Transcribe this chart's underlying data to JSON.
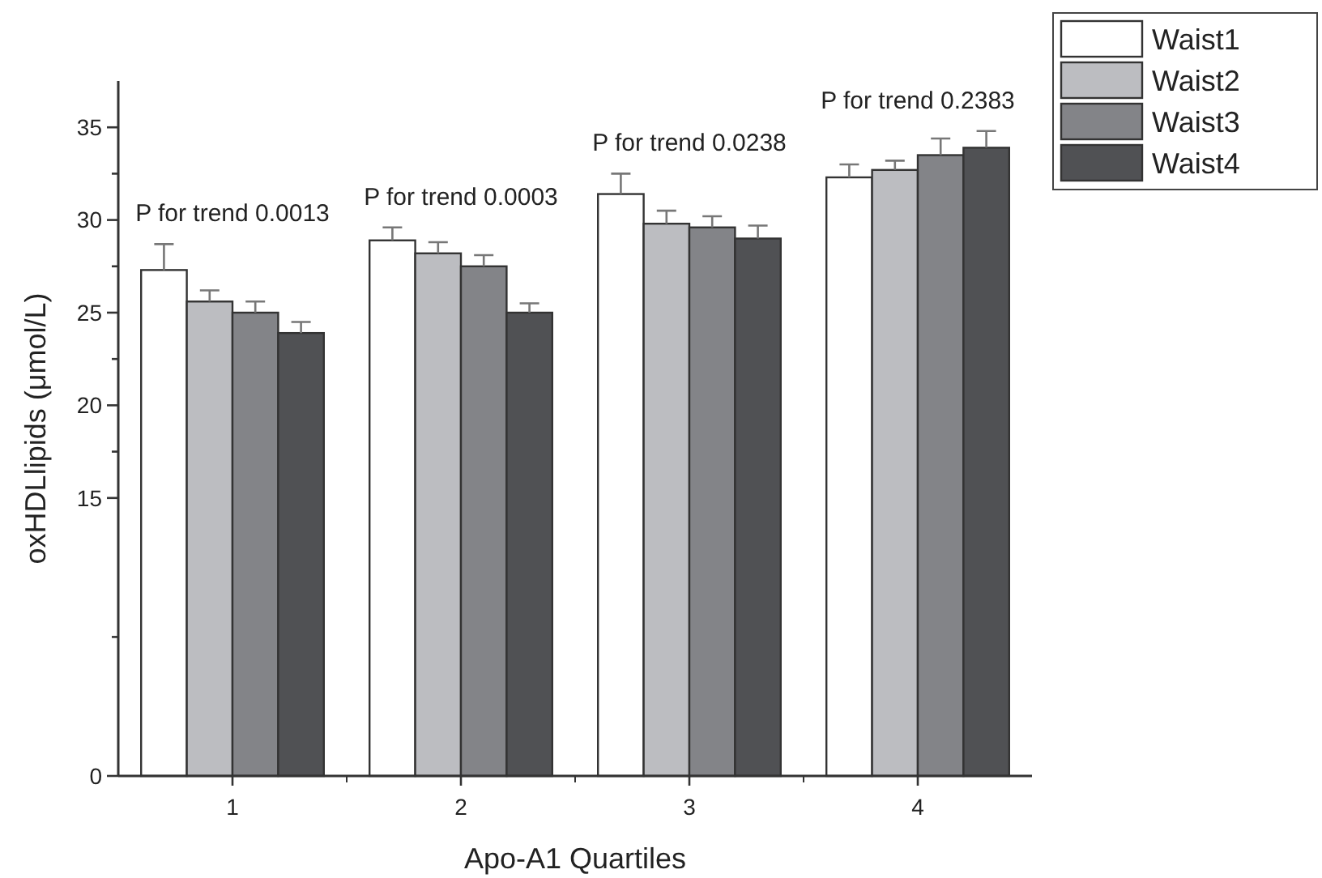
{
  "chart_data": {
    "type": "bar",
    "xlabel": "Apo-A1 Quartiles",
    "ylabel": "oxHDLlipids (μmol/L)",
    "categories": [
      "1",
      "2",
      "3",
      "4"
    ],
    "series": [
      {
        "name": "Waist1",
        "color": "#ffffff",
        "values": [
          27.3,
          28.9,
          31.4,
          32.3
        ],
        "errors": [
          [
            27.3,
            28.7
          ],
          [
            28.9,
            29.6
          ],
          [
            31.4,
            32.5
          ],
          [
            32.3,
            33.0
          ]
        ]
      },
      {
        "name": "Waist2",
        "color": "#bcbdc1",
        "values": [
          25.6,
          28.2,
          29.8,
          32.7
        ],
        "errors": [
          [
            25.6,
            26.2
          ],
          [
            28.2,
            28.8
          ],
          [
            29.8,
            30.5
          ],
          [
            32.7,
            33.2
          ]
        ]
      },
      {
        "name": "Waist3",
        "color": "#838488",
        "values": [
          25.0,
          27.5,
          29.6,
          33.5
        ],
        "errors": [
          [
            25.0,
            25.6
          ],
          [
            27.5,
            28.1
          ],
          [
            29.6,
            30.2
          ],
          [
            33.5,
            34.4
          ]
        ]
      },
      {
        "name": "Waist4",
        "color": "#505154",
        "values": [
          23.9,
          25.0,
          29.0,
          33.9
        ],
        "errors": [
          [
            23.9,
            24.5
          ],
          [
            25.0,
            25.5
          ],
          [
            29.0,
            29.7
          ],
          [
            33.9,
            34.8
          ]
        ]
      }
    ],
    "ylim": [
      0,
      37.5
    ],
    "yticks": [
      0,
      {
        "value": 7.5,
        "label": null
      },
      15,
      {
        "value": 17.5,
        "label": null
      },
      20,
      {
        "value": 22.5,
        "label": null
      },
      25,
      {
        "value": 27.5,
        "label": null
      },
      30,
      {
        "value": 32.5,
        "label": null
      },
      35
    ],
    "annotations": [
      "P for trend 0.0013",
      "P for trend 0.0003",
      "P for trend 0.0238",
      "P for trend 0.2383"
    ],
    "legend": "top right",
    "grid": false
  }
}
